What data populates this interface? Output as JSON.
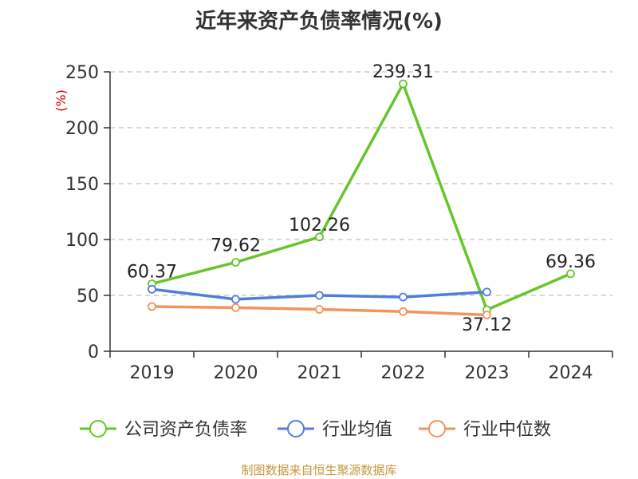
{
  "title": "近年来资产负债率情况(%)",
  "footer": "制图数据来自恒生聚源数据库",
  "colors": {
    "company": "#66c52b",
    "industry_avg": "#4f7fdb",
    "industry_median": "#f4935e",
    "ylabel": "#cc0000",
    "footer": "#c8963c",
    "grid": "#cccccc",
    "axis": "#333333"
  },
  "chart_data": {
    "type": "line",
    "title": "近年来资产负债率情况(%)",
    "xlabel": "",
    "ylabel": "(%)",
    "categories": [
      "2019",
      "2020",
      "2021",
      "2022",
      "2023",
      "2024"
    ],
    "ylim": [
      0,
      250
    ],
    "yticks": [
      0,
      50,
      100,
      150,
      200,
      250
    ],
    "grid": true,
    "legend_position": "bottom",
    "series": [
      {
        "name": "公司资产负债率",
        "key": "company",
        "values": [
          60.37,
          79.62,
          102.26,
          239.31,
          37.12,
          69.36
        ],
        "labels": [
          "60.37",
          "79.62",
          "102.26",
          "239.31",
          "37.12",
          "69.36"
        ]
      },
      {
        "name": "行业均值",
        "key": "industry_avg",
        "values": [
          55.5,
          46.5,
          50.0,
          48.5,
          53.0,
          null
        ]
      },
      {
        "name": "行业中位数",
        "key": "industry_median",
        "values": [
          40.0,
          39.0,
          37.5,
          35.5,
          32.5,
          null
        ]
      }
    ]
  }
}
